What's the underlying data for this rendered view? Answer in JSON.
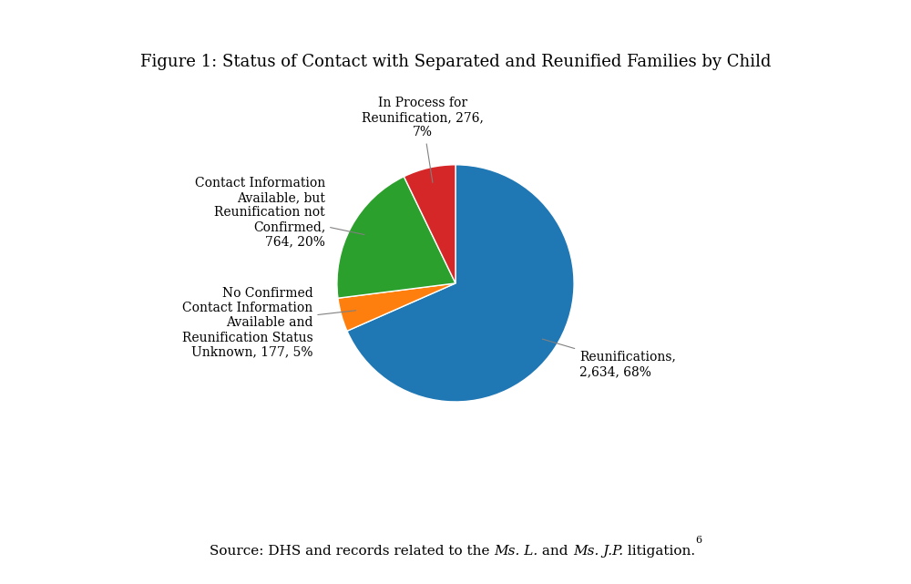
{
  "chart_data": {
    "type": "pie",
    "title": "Figure 1: Status of Contact with Separated and Reunified Families by Child",
    "categories": [
      "Reunifications,\n2,634, 68%",
      "No Confirmed\nContact Information\nAvailable and\nReunification Status\nUnknown, 177, 5%",
      "Contact Information\nAvailable, but\nReunification not\nConfirmed,\n764, 20%",
      "In Process for\nReunification, 276,\n7%"
    ],
    "values": [
      2634,
      177,
      764,
      276
    ],
    "source": [
      {
        "text": "Source: DHS and records related to the ",
        "style": "normal"
      },
      {
        "text": "Ms. L.",
        "style": "italic"
      },
      {
        "text": " and ",
        "style": "normal"
      },
      {
        "text": "Ms. J.P.",
        "style": "italic"
      },
      {
        "text": " litigation.",
        "style": "normal"
      }
    ],
    "source_superscript": "6"
  }
}
